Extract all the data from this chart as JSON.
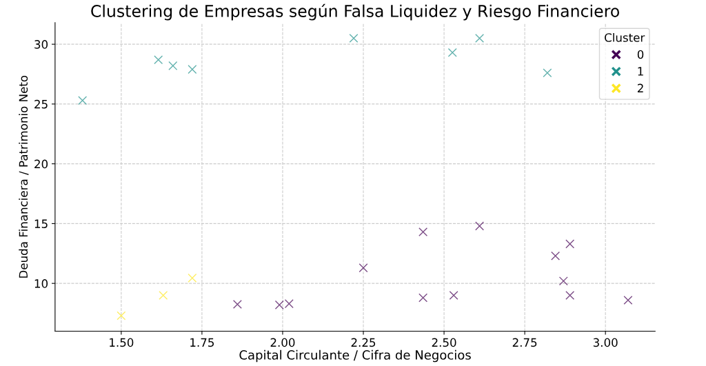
{
  "chart_data": {
    "type": "scatter",
    "title": "Clustering de Empresas según Falsa Liquidez y Riesgo Financiero",
    "xlabel": "Capital Circulante / Cifra de Negocios",
    "ylabel": "Deuda Financiera / Patrimonio Neto",
    "legend_title": "Cluster",
    "legend": "top right",
    "grid": true,
    "marker": "cross",
    "xlim": [
      1.295,
      3.154
    ],
    "ylim": [
      6.0,
      31.8
    ],
    "xticks": [
      {
        "value": 1.5,
        "label": "1.50"
      },
      {
        "value": 1.75,
        "label": "1.75"
      },
      {
        "value": 2.0,
        "label": "2.00"
      },
      {
        "value": 2.25,
        "label": "2.25"
      },
      {
        "value": 2.5,
        "label": "2.50"
      },
      {
        "value": 2.75,
        "label": "2.75"
      },
      {
        "value": 3.0,
        "label": "3.00"
      }
    ],
    "yticks": [
      10,
      15,
      20,
      25,
      30
    ],
    "series": [
      {
        "name": "0",
        "color": "#440154",
        "x": [
          1.86,
          1.99,
          2.02,
          2.25,
          2.435,
          2.435,
          2.53,
          2.61,
          2.845,
          2.89,
          2.87,
          2.89,
          3.07
        ],
        "values": [
          8.25,
          8.2,
          8.3,
          11.3,
          8.8,
          14.3,
          9.0,
          14.8,
          12.3,
          13.3,
          10.2,
          9.0,
          8.6
        ]
      },
      {
        "name": "1",
        "color": "#21918c",
        "x": [
          1.38,
          1.615,
          1.66,
          1.72,
          2.22,
          2.526,
          2.61,
          2.82
        ],
        "values": [
          25.3,
          28.7,
          28.2,
          27.9,
          30.5,
          29.3,
          30.5,
          27.6
        ]
      },
      {
        "name": "2",
        "color": "#fde725",
        "x": [
          1.5,
          1.63,
          1.72
        ],
        "values": [
          7.3,
          9.0,
          10.45
        ]
      }
    ]
  }
}
